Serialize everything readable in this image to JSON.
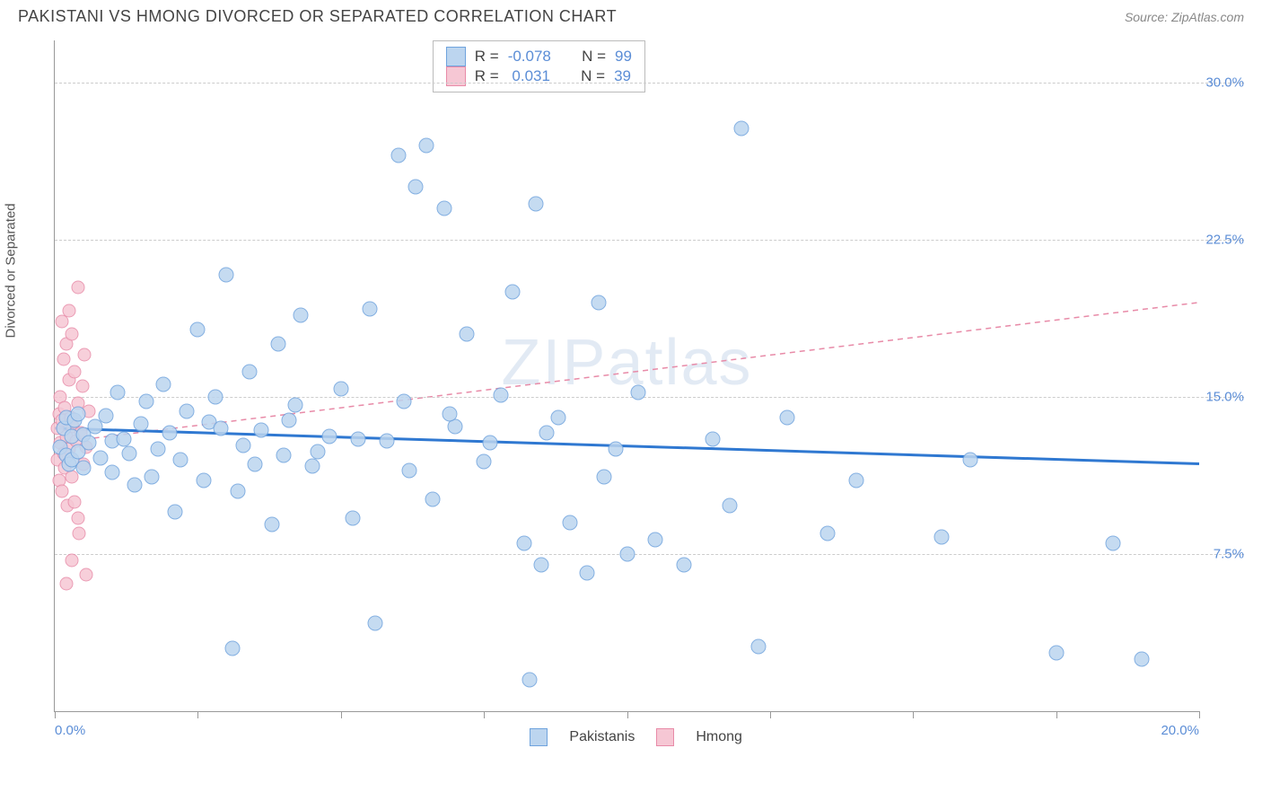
{
  "header": {
    "title": "PAKISTANI VS HMONG DIVORCED OR SEPARATED CORRELATION CHART",
    "source_label": "Source: ",
    "source_value": "ZipAtlas.com"
  },
  "chart": {
    "type": "scatter",
    "ylabel": "Divorced or Separated",
    "background_color": "#ffffff",
    "grid_color": "#cccccc",
    "axis_color": "#999999",
    "tick_label_color": "#5b8dd6",
    "label_fontsize": 15,
    "xlim": [
      0,
      20
    ],
    "ylim": [
      0,
      32
    ],
    "xtick_positions": [
      0,
      2.5,
      5,
      7.5,
      10,
      12.5,
      15,
      17.5,
      20
    ],
    "xtick_labels_shown": {
      "0": "0.0%",
      "20": "20.0%"
    },
    "ytick_positions": [
      7.5,
      15.0,
      22.5,
      30.0
    ],
    "ytick_labels": [
      "7.5%",
      "15.0%",
      "22.5%",
      "30.0%"
    ],
    "watermark_text_bold": "ZIP",
    "watermark_text_rest": "atlas",
    "series": {
      "pakistanis": {
        "label": "Pakistanis",
        "marker_fill": "#bcd5ef",
        "marker_stroke": "#6fa3dd",
        "marker_size": 17,
        "marker_opacity": 0.85,
        "trend_color": "#2f78d1",
        "trend_width": 3,
        "trend_dash": "none",
        "trend_y_at_xmin": 13.5,
        "trend_y_at_xmax": 11.8,
        "R": "-0.078",
        "N": "99",
        "points": [
          [
            0.1,
            12.6
          ],
          [
            0.15,
            13.5
          ],
          [
            0.2,
            12.2
          ],
          [
            0.2,
            14.0
          ],
          [
            0.25,
            11.8
          ],
          [
            0.3,
            13.1
          ],
          [
            0.3,
            12.0
          ],
          [
            0.35,
            13.9
          ],
          [
            0.4,
            12.4
          ],
          [
            0.4,
            14.2
          ],
          [
            0.5,
            11.6
          ],
          [
            0.5,
            13.2
          ],
          [
            0.6,
            12.8
          ],
          [
            0.7,
            13.6
          ],
          [
            0.8,
            12.1
          ],
          [
            0.9,
            14.1
          ],
          [
            1.0,
            12.9
          ],
          [
            1.0,
            11.4
          ],
          [
            1.1,
            15.2
          ],
          [
            1.2,
            13.0
          ],
          [
            1.3,
            12.3
          ],
          [
            1.4,
            10.8
          ],
          [
            1.5,
            13.7
          ],
          [
            1.6,
            14.8
          ],
          [
            1.7,
            11.2
          ],
          [
            1.8,
            12.5
          ],
          [
            1.9,
            15.6
          ],
          [
            2.0,
            13.3
          ],
          [
            2.1,
            9.5
          ],
          [
            2.2,
            12.0
          ],
          [
            2.3,
            14.3
          ],
          [
            2.5,
            18.2
          ],
          [
            2.6,
            11.0
          ],
          [
            2.7,
            13.8
          ],
          [
            2.8,
            15.0
          ],
          [
            3.0,
            20.8
          ],
          [
            3.1,
            3.0
          ],
          [
            3.2,
            10.5
          ],
          [
            3.3,
            12.7
          ],
          [
            3.4,
            16.2
          ],
          [
            3.6,
            13.4
          ],
          [
            3.8,
            8.9
          ],
          [
            3.9,
            17.5
          ],
          [
            4.0,
            12.2
          ],
          [
            4.2,
            14.6
          ],
          [
            4.3,
            18.9
          ],
          [
            4.5,
            11.7
          ],
          [
            4.8,
            13.1
          ],
          [
            5.0,
            15.4
          ],
          [
            5.2,
            9.2
          ],
          [
            5.5,
            19.2
          ],
          [
            5.6,
            4.2
          ],
          [
            5.8,
            12.9
          ],
          [
            6.0,
            26.5
          ],
          [
            6.1,
            14.8
          ],
          [
            6.3,
            25.0
          ],
          [
            6.5,
            27.0
          ],
          [
            6.6,
            10.1
          ],
          [
            6.8,
            24.0
          ],
          [
            7.0,
            13.6
          ],
          [
            7.2,
            18.0
          ],
          [
            7.5,
            11.9
          ],
          [
            7.8,
            15.1
          ],
          [
            8.0,
            20.0
          ],
          [
            8.2,
            8.0
          ],
          [
            8.3,
            1.5
          ],
          [
            8.4,
            24.2
          ],
          [
            8.5,
            7.0
          ],
          [
            8.8,
            14.0
          ],
          [
            9.0,
            9.0
          ],
          [
            9.3,
            6.6
          ],
          [
            9.5,
            19.5
          ],
          [
            9.8,
            12.5
          ],
          [
            10.0,
            7.5
          ],
          [
            10.2,
            15.2
          ],
          [
            10.5,
            8.2
          ],
          [
            11.0,
            7.0
          ],
          [
            11.5,
            13.0
          ],
          [
            12.0,
            27.8
          ],
          [
            12.3,
            3.1
          ],
          [
            12.8,
            14.0
          ],
          [
            13.5,
            8.5
          ],
          [
            14.0,
            11.0
          ],
          [
            15.5,
            8.3
          ],
          [
            16.0,
            12.0
          ],
          [
            17.5,
            2.8
          ],
          [
            18.5,
            8.0
          ],
          [
            19.0,
            2.5
          ],
          [
            2.9,
            13.5
          ],
          [
            3.5,
            11.8
          ],
          [
            4.1,
            13.9
          ],
          [
            4.6,
            12.4
          ],
          [
            5.3,
            13.0
          ],
          [
            6.2,
            11.5
          ],
          [
            6.9,
            14.2
          ],
          [
            7.6,
            12.8
          ],
          [
            8.6,
            13.3
          ],
          [
            9.6,
            11.2
          ],
          [
            11.8,
            9.8
          ]
        ]
      },
      "hmong": {
        "label": "Hmong",
        "marker_fill": "#f6c7d4",
        "marker_stroke": "#e88ba8",
        "marker_size": 15,
        "marker_opacity": 0.85,
        "trend_color": "#e88ba8",
        "trend_width": 1.5,
        "trend_dash": "6,5",
        "trend_y_at_xmin": 12.8,
        "trend_y_at_xmax": 19.5,
        "R": "0.031",
        "N": "39",
        "points": [
          [
            0.05,
            12.0
          ],
          [
            0.05,
            13.5
          ],
          [
            0.08,
            11.0
          ],
          [
            0.08,
            14.2
          ],
          [
            0.1,
            15.0
          ],
          [
            0.1,
            12.8
          ],
          [
            0.12,
            10.5
          ],
          [
            0.12,
            13.9
          ],
          [
            0.15,
            16.8
          ],
          [
            0.15,
            12.3
          ],
          [
            0.18,
            14.5
          ],
          [
            0.18,
            11.6
          ],
          [
            0.2,
            17.5
          ],
          [
            0.2,
            13.1
          ],
          [
            0.22,
            9.8
          ],
          [
            0.25,
            15.8
          ],
          [
            0.25,
            12.5
          ],
          [
            0.28,
            14.0
          ],
          [
            0.3,
            18.0
          ],
          [
            0.3,
            11.2
          ],
          [
            0.32,
            13.6
          ],
          [
            0.35,
            16.2
          ],
          [
            0.35,
            10.0
          ],
          [
            0.38,
            12.9
          ],
          [
            0.4,
            20.2
          ],
          [
            0.4,
            14.7
          ],
          [
            0.42,
            8.5
          ],
          [
            0.45,
            13.3
          ],
          [
            0.48,
            15.5
          ],
          [
            0.5,
            11.8
          ],
          [
            0.52,
            17.0
          ],
          [
            0.55,
            12.6
          ],
          [
            0.55,
            6.5
          ],
          [
            0.6,
            14.3
          ],
          [
            0.2,
            6.1
          ],
          [
            0.3,
            7.2
          ],
          [
            0.12,
            18.6
          ],
          [
            0.4,
            9.2
          ],
          [
            0.25,
            19.1
          ]
        ]
      }
    },
    "legend_stats": {
      "R_label": "R =",
      "N_label": "N ="
    }
  }
}
